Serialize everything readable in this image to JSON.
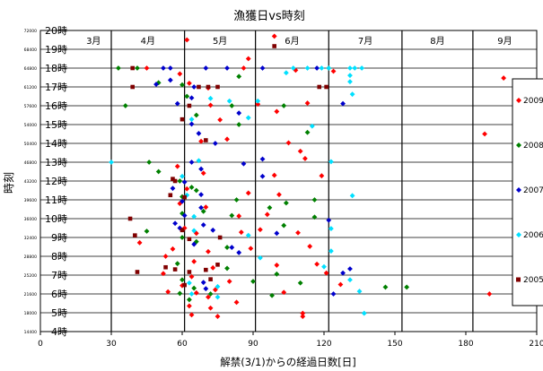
{
  "chart_data": {
    "type": "scatter",
    "title": "漁獲日vs時刻",
    "xlabel": "解禁(3/1)からの経過日数[日]",
    "ylabel": "時刻",
    "xlim": [
      0,
      210
    ],
    "ylim": [
      14400,
      72000
    ],
    "x_ticks": [
      0,
      30,
      60,
      90,
      120,
      150,
      180,
      210
    ],
    "y_ticks": [
      14400,
      18000,
      21600,
      25200,
      28800,
      32400,
      36000,
      39600,
      43200,
      46800,
      50400,
      54000,
      57600,
      61200,
      64800,
      68400,
      72000
    ],
    "hour_labels": [
      "4時",
      "5時",
      "6時",
      "7時",
      "8時",
      "9時",
      "10時",
      "11時",
      "12時",
      "13時",
      "14時",
      "15時",
      "16時",
      "17時",
      "18時",
      "19時",
      "20時"
    ],
    "month_labels": [
      {
        "label": "3月",
        "start": 15,
        "end": 30
      },
      {
        "label": "4月",
        "start": 30,
        "end": 61
      },
      {
        "label": "5月",
        "start": 61,
        "end": 91
      },
      {
        "label": "6月",
        "start": 91,
        "end": 122
      },
      {
        "label": "7月",
        "start": 122,
        "end": 153
      },
      {
        "label": "8月",
        "start": 153,
        "end": 183
      },
      {
        "label": "9月",
        "start": 183,
        "end": 210
      }
    ],
    "month_boundaries": [
      30,
      61,
      91,
      122,
      153,
      183
    ],
    "grid": true,
    "legend_position": "right",
    "series": [
      {
        "name": "2009",
        "color": "#ff0000",
        "marker": "diamond",
        "points": [
          [
            196,
            62900
          ],
          [
            62,
            70200
          ],
          [
            88,
            66600
          ],
          [
            99,
            70900
          ],
          [
            45,
            64800
          ],
          [
            59,
            63700
          ],
          [
            63,
            61900
          ],
          [
            71,
            61000
          ],
          [
            86,
            64800
          ],
          [
            108,
            64400
          ],
          [
            124,
            64200
          ],
          [
            72,
            57700
          ],
          [
            92,
            57900
          ],
          [
            113,
            58100
          ],
          [
            76,
            54900
          ],
          [
            100,
            56500
          ],
          [
            188,
            52200
          ],
          [
            68,
            50800
          ],
          [
            79,
            51200
          ],
          [
            105,
            50500
          ],
          [
            110,
            48900
          ],
          [
            112,
            47500
          ],
          [
            58,
            46000
          ],
          [
            69,
            44700
          ],
          [
            99,
            44300
          ],
          [
            119,
            44200
          ],
          [
            62,
            41700
          ],
          [
            88,
            40900
          ],
          [
            101,
            40600
          ],
          [
            59,
            38900
          ],
          [
            70,
            38200
          ],
          [
            84,
            36500
          ],
          [
            96,
            36800
          ],
          [
            61,
            34200
          ],
          [
            66,
            33200
          ],
          [
            85,
            33400
          ],
          [
            93,
            33900
          ],
          [
            109,
            33300
          ],
          [
            42,
            31400
          ],
          [
            56,
            30200
          ],
          [
            71,
            29700
          ],
          [
            89,
            30300
          ],
          [
            114,
            30700
          ],
          [
            53,
            28800
          ],
          [
            65,
            27800
          ],
          [
            73,
            26600
          ],
          [
            100,
            27100
          ],
          [
            117,
            27300
          ],
          [
            52,
            25500
          ],
          [
            64,
            24900
          ],
          [
            80,
            24000
          ],
          [
            121,
            25600
          ],
          [
            60,
            23200
          ],
          [
            74,
            22400
          ],
          [
            127,
            23400
          ],
          [
            54,
            22000
          ],
          [
            66,
            21800
          ],
          [
            103,
            21900
          ],
          [
            190,
            21600
          ],
          [
            71,
            21000
          ],
          [
            83,
            20000
          ],
          [
            63,
            19300
          ],
          [
            72,
            18900
          ],
          [
            64,
            17600
          ],
          [
            75,
            17300
          ],
          [
            111,
            17900
          ],
          [
            111,
            17300
          ]
        ]
      },
      {
        "name": "2008",
        "color": "#008000",
        "marker": "diamond",
        "points": [
          [
            33,
            64800
          ],
          [
            41,
            64800
          ],
          [
            50,
            62000
          ],
          [
            60,
            61600
          ],
          [
            84,
            63200
          ],
          [
            122,
            64800
          ],
          [
            36,
            57600
          ],
          [
            62,
            59400
          ],
          [
            66,
            55800
          ],
          [
            81,
            57600
          ],
          [
            103,
            57600
          ],
          [
            84,
            54000
          ],
          [
            113,
            52500
          ],
          [
            46,
            46800
          ],
          [
            50,
            45000
          ],
          [
            59,
            43200
          ],
          [
            64,
            42000
          ],
          [
            60,
            40200
          ],
          [
            66,
            41400
          ],
          [
            83,
            39600
          ],
          [
            104,
            39000
          ],
          [
            116,
            39600
          ],
          [
            60,
            37000
          ],
          [
            69,
            37400
          ],
          [
            81,
            36600
          ],
          [
            97,
            38100
          ],
          [
            116,
            36300
          ],
          [
            45,
            33600
          ],
          [
            60,
            32400
          ],
          [
            66,
            31600
          ],
          [
            79,
            30500
          ],
          [
            103,
            34700
          ],
          [
            58,
            27400
          ],
          [
            79,
            26500
          ],
          [
            100,
            25400
          ],
          [
            60,
            24300
          ],
          [
            65,
            22700
          ],
          [
            90,
            24000
          ],
          [
            110,
            23700
          ],
          [
            146,
            22900
          ],
          [
            155,
            22900
          ],
          [
            59,
            21700
          ],
          [
            72,
            21600
          ],
          [
            98,
            21300
          ],
          [
            63,
            20500
          ]
        ]
      },
      {
        "name": "2007",
        "color": "#0000cc",
        "marker": "diamond",
        "points": [
          [
            52,
            64800
          ],
          [
            55,
            64800
          ],
          [
            70,
            64800
          ],
          [
            79,
            64800
          ],
          [
            94,
            64800
          ],
          [
            117,
            64800
          ],
          [
            49,
            61700
          ],
          [
            55,
            62500
          ],
          [
            65,
            61200
          ],
          [
            58,
            58000
          ],
          [
            64,
            59100
          ],
          [
            84,
            56200
          ],
          [
            128,
            58000
          ],
          [
            64,
            54100
          ],
          [
            67,
            52300
          ],
          [
            74,
            50400
          ],
          [
            94,
            47400
          ],
          [
            64,
            46800
          ],
          [
            68,
            45500
          ],
          [
            86,
            46500
          ],
          [
            94,
            44100
          ],
          [
            56,
            41800
          ],
          [
            61,
            43000
          ],
          [
            68,
            40600
          ],
          [
            60,
            39300
          ],
          [
            68,
            38100
          ],
          [
            61,
            36600
          ],
          [
            57,
            35100
          ],
          [
            59,
            34200
          ],
          [
            69,
            34800
          ],
          [
            73,
            33800
          ],
          [
            100,
            33200
          ],
          [
            122,
            35700
          ],
          [
            65,
            31100
          ],
          [
            81,
            30500
          ],
          [
            84,
            29500
          ],
          [
            128,
            25600
          ],
          [
            131,
            26400
          ],
          [
            69,
            23800
          ],
          [
            70,
            22600
          ],
          [
            124,
            21600
          ]
        ]
      },
      {
        "name": "2006",
        "color": "#00e0ff",
        "marker": "diamond",
        "points": [
          [
            107,
            64800
          ],
          [
            113,
            64800
          ],
          [
            119,
            64800
          ],
          [
            122,
            64800
          ],
          [
            131,
            64800
          ],
          [
            133,
            64800
          ],
          [
            136,
            64800
          ],
          [
            104,
            63900
          ],
          [
            131,
            63400
          ],
          [
            131,
            62200
          ],
          [
            72,
            59000
          ],
          [
            80,
            58500
          ],
          [
            92,
            58500
          ],
          [
            132,
            59800
          ],
          [
            64,
            55000
          ],
          [
            88,
            55300
          ],
          [
            115,
            53700
          ],
          [
            30,
            46800
          ],
          [
            67,
            47100
          ],
          [
            123,
            46900
          ],
          [
            60,
            44100
          ],
          [
            62,
            40500
          ],
          [
            132,
            40400
          ],
          [
            65,
            36400
          ],
          [
            65,
            33700
          ],
          [
            88,
            32800
          ],
          [
            123,
            34100
          ],
          [
            123,
            29800
          ],
          [
            93,
            28500
          ],
          [
            120,
            26800
          ],
          [
            131,
            24300
          ],
          [
            63,
            23700
          ],
          [
            75,
            23000
          ],
          [
            135,
            22100
          ],
          [
            64,
            21600
          ],
          [
            75,
            21000
          ],
          [
            137,
            17900
          ]
        ]
      },
      {
        "name": "2005",
        "color": "#800000",
        "marker": "square",
        "points": [
          [
            39,
            64800
          ],
          [
            39,
            61200
          ],
          [
            67,
            61200
          ],
          [
            71,
            61200
          ],
          [
            75,
            61200
          ],
          [
            118,
            61200
          ],
          [
            121,
            61200
          ],
          [
            99,
            69000
          ],
          [
            63,
            57600
          ],
          [
            60,
            55000
          ],
          [
            70,
            51000
          ],
          [
            56,
            43600
          ],
          [
            57,
            43200
          ],
          [
            55,
            40500
          ],
          [
            61,
            40100
          ],
          [
            38,
            36000
          ],
          [
            40,
            32800
          ],
          [
            60,
            33800
          ],
          [
            63,
            32100
          ],
          [
            76,
            32400
          ],
          [
            41,
            25800
          ],
          [
            53,
            26700
          ],
          [
            57,
            26300
          ],
          [
            63,
            25800
          ],
          [
            70,
            26200
          ],
          [
            75,
            27200
          ],
          [
            72,
            24400
          ],
          [
            61,
            23300
          ]
        ]
      }
    ]
  }
}
